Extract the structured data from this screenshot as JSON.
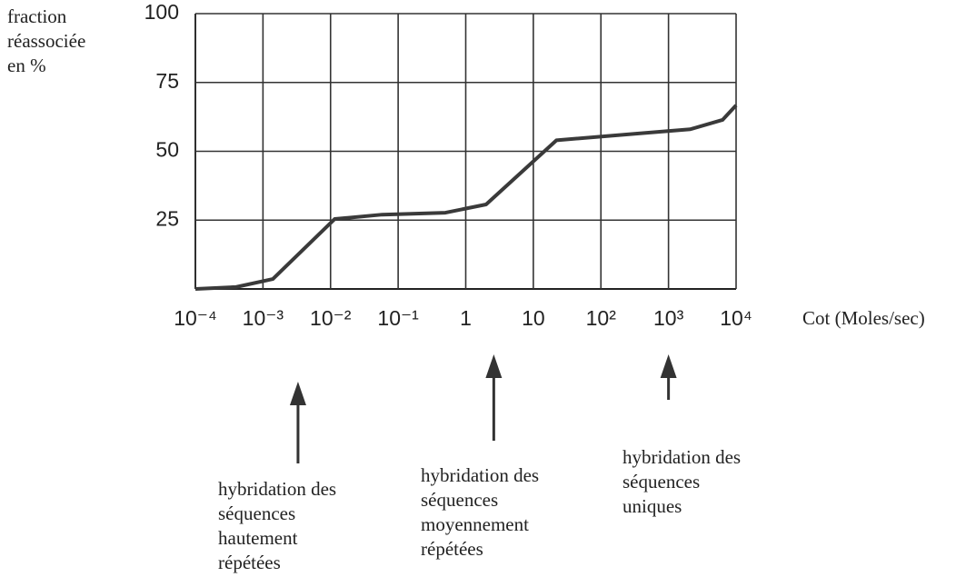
{
  "chart_data": {
    "type": "line",
    "ylabel": [
      "fraction",
      "réassociée",
      "en %"
    ],
    "xlabel": "Cot (Moles/sec)",
    "xscale": "log",
    "grid": true,
    "xlim": [
      0.0001,
      10000
    ],
    "xticks": [
      {
        "value": 0.0001,
        "label": "10⁻⁴"
      },
      {
        "value": 0.001,
        "label": "10⁻³"
      },
      {
        "value": 0.01,
        "label": "10⁻²"
      },
      {
        "value": 0.1,
        "label": "10⁻¹"
      },
      1,
      10,
      {
        "value": 100,
        "label": "10²"
      },
      {
        "value": 1000,
        "label": "10³"
      },
      {
        "value": 10000,
        "label": "10⁴"
      }
    ],
    "ylim": [
      0,
      100
    ],
    "yticks": [
      25,
      50,
      75,
      100
    ],
    "series": [
      {
        "color": "#3a3a3a",
        "x": [
          0.0001,
          0.0004,
          0.0014,
          0.0115,
          0.058,
          0.5,
          2,
          22,
          330,
          2100,
          6300,
          10000
        ],
        "values": [
          0,
          0.7,
          3.6,
          25.4,
          27,
          27.7,
          30.7,
          54,
          56.4,
          58,
          61.4,
          66.7
        ]
      }
    ],
    "annotations": [
      {
        "x": 0.0033,
        "lines": [
          "hybridation des",
          "séquences",
          "hautement",
          "répétées"
        ]
      },
      {
        "x": 2.6,
        "lines": [
          "hybridation des",
          "séquences",
          "moyennement",
          "répétées"
        ]
      },
      {
        "x": 1000,
        "lines": [
          "hybridation des",
          "séquences",
          "uniques"
        ]
      }
    ]
  }
}
